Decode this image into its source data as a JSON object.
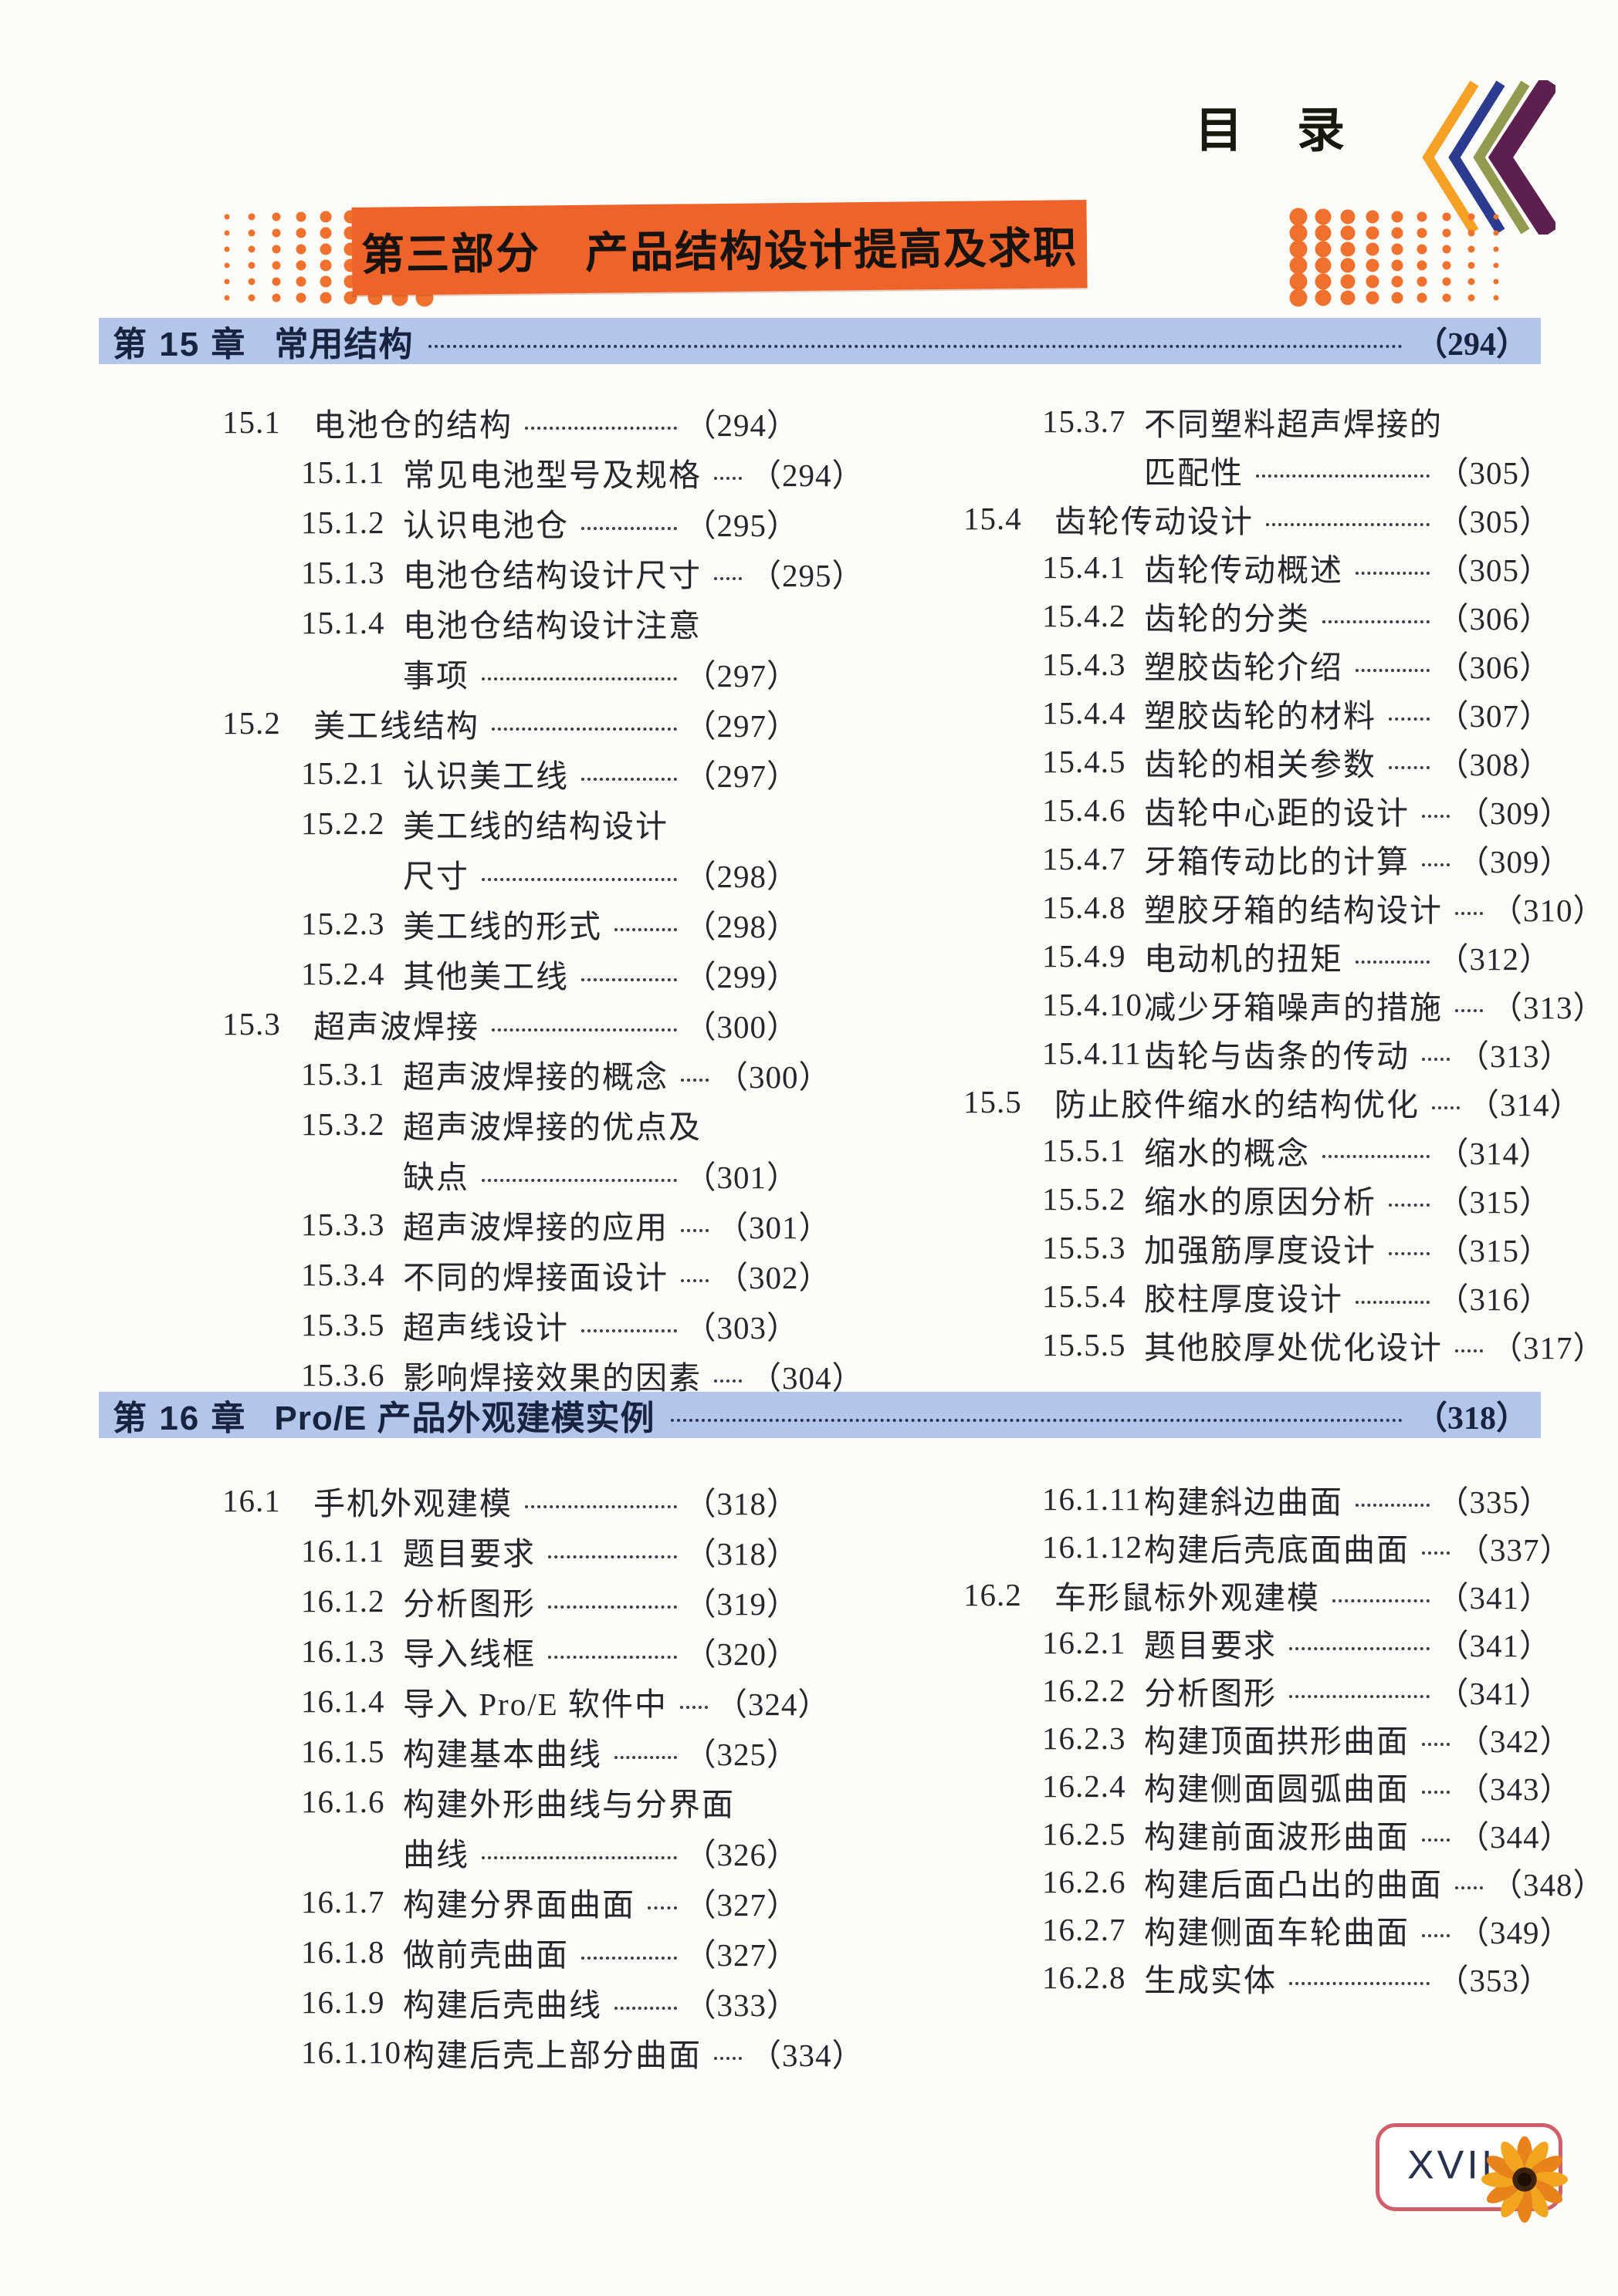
{
  "header": {
    "title": "目　录"
  },
  "part_banner": {
    "text": "第三部分　产品结构设计提高及求职"
  },
  "chapters": [
    {
      "label": "第 15 章",
      "title": "常用结构",
      "page": "294",
      "left": [
        {
          "num": "15.1",
          "title": "电池仓的结构",
          "page": "294"
        },
        {
          "num": "15.1.1",
          "title": "常见电池型号及规格",
          "page": "294"
        },
        {
          "num": "15.1.2",
          "title": "认识电池仓",
          "page": "295"
        },
        {
          "num": "15.1.3",
          "title": "电池仓结构设计尺寸",
          "page": "295"
        },
        {
          "num": "15.1.4",
          "title": "电池仓结构设计注意",
          "title2": "事项",
          "page": "297"
        },
        {
          "num": "15.2",
          "title": "美工线结构",
          "page": "297"
        },
        {
          "num": "15.2.1",
          "title": "认识美工线",
          "page": "297"
        },
        {
          "num": "15.2.2",
          "title": "美工线的结构设计",
          "title2": "尺寸",
          "page": "298"
        },
        {
          "num": "15.2.3",
          "title": "美工线的形式",
          "page": "298"
        },
        {
          "num": "15.2.4",
          "title": "其他美工线",
          "page": "299"
        },
        {
          "num": "15.3",
          "title": "超声波焊接",
          "page": "300"
        },
        {
          "num": "15.3.1",
          "title": "超声波焊接的概念",
          "page": "300"
        },
        {
          "num": "15.3.2",
          "title": "超声波焊接的优点及",
          "title2": "缺点",
          "page": "301"
        },
        {
          "num": "15.3.3",
          "title": "超声波焊接的应用",
          "page": "301"
        },
        {
          "num": "15.3.4",
          "title": "不同的焊接面设计",
          "page": "302"
        },
        {
          "num": "15.3.5",
          "title": "超声线设计",
          "page": "303"
        },
        {
          "num": "15.3.6",
          "title": "影响焊接效果的因素",
          "page": "304"
        }
      ],
      "right": [
        {
          "num": "15.3.7",
          "title": "不同塑料超声焊接的",
          "title2": "匹配性",
          "page": "305"
        },
        {
          "num": "15.4",
          "title": "齿轮传动设计",
          "page": "305"
        },
        {
          "num": "15.4.1",
          "title": "齿轮传动概述",
          "page": "305"
        },
        {
          "num": "15.4.2",
          "title": "齿轮的分类",
          "page": "306"
        },
        {
          "num": "15.4.3",
          "title": "塑胶齿轮介绍",
          "page": "306"
        },
        {
          "num": "15.4.4",
          "title": "塑胶齿轮的材料",
          "page": "307"
        },
        {
          "num": "15.4.5",
          "title": "齿轮的相关参数",
          "page": "308"
        },
        {
          "num": "15.4.6",
          "title": "齿轮中心距的设计",
          "page": "309"
        },
        {
          "num": "15.4.7",
          "title": "牙箱传动比的计算",
          "page": "309"
        },
        {
          "num": "15.4.8",
          "title": "塑胶牙箱的结构设计",
          "page": "310"
        },
        {
          "num": "15.4.9",
          "title": "电动机的扭矩",
          "page": "312"
        },
        {
          "num": "15.4.10",
          "title": "减少牙箱噪声的措施",
          "page": "313"
        },
        {
          "num": "15.4.11",
          "title": "齿轮与齿条的传动",
          "page": "313"
        },
        {
          "num": "15.5",
          "title": "防止胶件缩水的结构优化",
          "page": "314"
        },
        {
          "num": "15.5.1",
          "title": "缩水的概念",
          "page": "314"
        },
        {
          "num": "15.5.2",
          "title": "缩水的原因分析",
          "page": "315"
        },
        {
          "num": "15.5.3",
          "title": "加强筋厚度设计",
          "page": "315"
        },
        {
          "num": "15.5.4",
          "title": "胶柱厚度设计",
          "page": "316"
        },
        {
          "num": "15.5.5",
          "title": "其他胶厚处优化设计",
          "page": "317"
        }
      ]
    },
    {
      "label": "第 16 章",
      "title": "Pro/E 产品外观建模实例",
      "page": "318",
      "left": [
        {
          "num": "16.1",
          "title": "手机外观建模",
          "page": "318"
        },
        {
          "num": "16.1.1",
          "title": "题目要求",
          "page": "318"
        },
        {
          "num": "16.1.2",
          "title": "分析图形",
          "page": "319"
        },
        {
          "num": "16.1.3",
          "title": "导入线框",
          "page": "320"
        },
        {
          "num": "16.1.4",
          "title": "导入 Pro/E 软件中",
          "page": "324"
        },
        {
          "num": "16.1.5",
          "title": "构建基本曲线",
          "page": "325"
        },
        {
          "num": "16.1.6",
          "title": "构建外形曲线与分界面",
          "title2": "曲线",
          "page": "326"
        },
        {
          "num": "16.1.7",
          "title": "构建分界面曲面",
          "page": "327"
        },
        {
          "num": "16.1.8",
          "title": "做前壳曲面",
          "page": "327"
        },
        {
          "num": "16.1.9",
          "title": "构建后壳曲线",
          "page": "333"
        },
        {
          "num": "16.1.10",
          "title": "构建后壳上部分曲面",
          "page": "334"
        }
      ],
      "right": [
        {
          "num": "16.1.11",
          "title": "构建斜边曲面",
          "page": "335"
        },
        {
          "num": "16.1.12",
          "title": "构建后壳底面曲面",
          "page": "337"
        },
        {
          "num": "16.2",
          "title": "车形鼠标外观建模",
          "page": "341"
        },
        {
          "num": "16.2.1",
          "title": "题目要求",
          "page": "341"
        },
        {
          "num": "16.2.2",
          "title": "分析图形",
          "page": "341"
        },
        {
          "num": "16.2.3",
          "title": "构建顶面拱形曲面",
          "page": "342"
        },
        {
          "num": "16.2.4",
          "title": "构建侧面圆弧曲面",
          "page": "343"
        },
        {
          "num": "16.2.5",
          "title": "构建前面波形曲面",
          "page": "344"
        },
        {
          "num": "16.2.6",
          "title": "构建后面凸出的曲面",
          "page": "348"
        },
        {
          "num": "16.2.7",
          "title": "构建侧面车轮曲面",
          "page": "349"
        },
        {
          "num": "16.2.8",
          "title": "生成实体",
          "page": "353"
        }
      ]
    }
  ],
  "page_badge": {
    "number": "XVII"
  },
  "colors": {
    "banner_orange": "#ee6329",
    "chapter_bar_blue": "#b2c6ec",
    "dot_orange": "#f0702e",
    "badge_border": "#cf5f6a",
    "chevrons": [
      "#f5a125",
      "#2b3c8f",
      "#93994f",
      "#5c1f4f"
    ],
    "gradient_top": "#ef8a35",
    "gradient_bottom": "#7ca544"
  }
}
